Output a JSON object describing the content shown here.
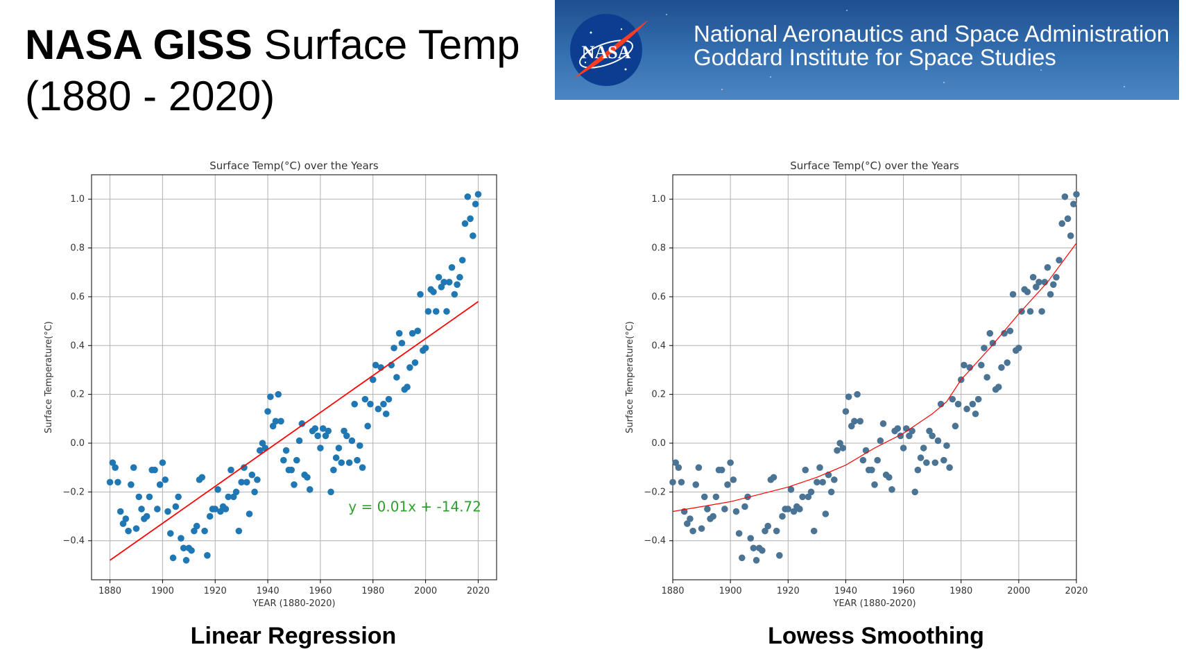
{
  "slide": {
    "title_bold": "NASA GISS",
    "title_rest": " Surface Temp",
    "title_line2": "(1880 - 2020)"
  },
  "banner": {
    "logo_text": "NASA",
    "line1": "National Aeronautics and Space Administration",
    "line2": "Goddard Institute for Space Studies"
  },
  "captions": {
    "left": "Linear Regression",
    "right": "Lowess Smoothing"
  },
  "colors": {
    "points_left": "#1f77b4",
    "points_right": "#4b7494",
    "fit_line": "#ff0000",
    "equation": "#2ca02c"
  },
  "chart_data": [
    {
      "type": "scatter",
      "title": "Surface Temp(°C) over the Years",
      "xlabel": "YEAR (1880-2020)",
      "ylabel": "Surface Temperature(°C)",
      "xlim": [
        1873,
        2027
      ],
      "ylim": [
        -0.56,
        1.1
      ],
      "xticks": [
        1880,
        1900,
        1920,
        1940,
        1960,
        1980,
        2000,
        2020
      ],
      "yticks": [
        -0.4,
        -0.2,
        0.0,
        0.2,
        0.4,
        0.6,
        0.8,
        1.0
      ],
      "grid": true,
      "fit": {
        "type": "linear",
        "x": [
          1880,
          2020
        ],
        "y": [
          -0.48,
          0.58
        ]
      },
      "annotation": "y = 0.01x + -14.72",
      "x": [
        1880,
        1881,
        1882,
        1883,
        1884,
        1885,
        1886,
        1887,
        1888,
        1889,
        1890,
        1891,
        1892,
        1893,
        1894,
        1895,
        1896,
        1897,
        1898,
        1899,
        1900,
        1901,
        1902,
        1903,
        1904,
        1905,
        1906,
        1907,
        1908,
        1909,
        1910,
        1911,
        1912,
        1913,
        1914,
        1915,
        1916,
        1917,
        1918,
        1919,
        1920,
        1921,
        1922,
        1923,
        1924,
        1925,
        1926,
        1927,
        1928,
        1929,
        1930,
        1931,
        1932,
        1933,
        1934,
        1935,
        1936,
        1937,
        1938,
        1939,
        1940,
        1941,
        1942,
        1943,
        1944,
        1945,
        1946,
        1947,
        1948,
        1949,
        1950,
        1951,
        1952,
        1953,
        1954,
        1955,
        1956,
        1957,
        1958,
        1959,
        1960,
        1961,
        1962,
        1963,
        1964,
        1965,
        1966,
        1967,
        1968,
        1969,
        1970,
        1971,
        1972,
        1973,
        1974,
        1975,
        1976,
        1977,
        1978,
        1979,
        1980,
        1981,
        1982,
        1983,
        1984,
        1985,
        1986,
        1987,
        1988,
        1989,
        1990,
        1991,
        1992,
        1993,
        1994,
        1995,
        1996,
        1997,
        1998,
        1999,
        2000,
        2001,
        2002,
        2003,
        2004,
        2005,
        2006,
        2007,
        2008,
        2009,
        2010,
        2011,
        2012,
        2013,
        2014,
        2015,
        2016,
        2017,
        2018,
        2019,
        2020
      ],
      "y": [
        -0.16,
        -0.08,
        -0.1,
        -0.16,
        -0.28,
        -0.33,
        -0.31,
        -0.36,
        -0.17,
        -0.1,
        -0.35,
        -0.22,
        -0.27,
        -0.31,
        -0.3,
        -0.22,
        -0.11,
        -0.11,
        -0.27,
        -0.17,
        -0.08,
        -0.15,
        -0.28,
        -0.37,
        -0.47,
        -0.26,
        -0.22,
        -0.39,
        -0.43,
        -0.48,
        -0.43,
        -0.44,
        -0.36,
        -0.34,
        -0.15,
        -0.14,
        -0.36,
        -0.46,
        -0.3,
        -0.27,
        -0.27,
        -0.19,
        -0.28,
        -0.26,
        -0.27,
        -0.22,
        -0.11,
        -0.22,
        -0.2,
        -0.36,
        -0.16,
        -0.1,
        -0.16,
        -0.29,
        -0.13,
        -0.2,
        -0.15,
        -0.03,
        0.0,
        -0.02,
        0.13,
        0.19,
        0.07,
        0.09,
        0.2,
        0.09,
        -0.07,
        -0.03,
        -0.11,
        -0.11,
        -0.17,
        -0.07,
        0.01,
        0.08,
        -0.13,
        -0.14,
        -0.19,
        0.05,
        0.06,
        0.03,
        -0.02,
        0.06,
        0.03,
        0.05,
        -0.2,
        -0.11,
        -0.06,
        -0.02,
        -0.08,
        0.05,
        0.03,
        -0.08,
        0.01,
        0.16,
        -0.07,
        -0.01,
        -0.1,
        0.18,
        0.07,
        0.16,
        0.26,
        0.32,
        0.14,
        0.31,
        0.16,
        0.12,
        0.18,
        0.32,
        0.39,
        0.27,
        0.45,
        0.41,
        0.22,
        0.23,
        0.31,
        0.45,
        0.33,
        0.46,
        0.61,
        0.38,
        0.39,
        0.54,
        0.63,
        0.62,
        0.54,
        0.68,
        0.64,
        0.66,
        0.54,
        0.66,
        0.72,
        0.61,
        0.65,
        0.68,
        0.75,
        0.9,
        1.01,
        0.92,
        0.85,
        0.98,
        1.02
      ]
    },
    {
      "type": "scatter",
      "title": "Surface Temp(°C) over the Years",
      "xlabel": "YEAR (1880-2020)",
      "ylabel": "Surface Temperature(°C)",
      "xlim": [
        1880,
        2020
      ],
      "ylim": [
        -0.56,
        1.1
      ],
      "xticks": [
        1880,
        1900,
        1920,
        1940,
        1960,
        1980,
        2000,
        2020
      ],
      "yticks": [
        -0.4,
        -0.2,
        0.0,
        0.2,
        0.4,
        0.6,
        0.8,
        1.0
      ],
      "grid": true,
      "fit": {
        "type": "lowess",
        "x": [
          1880,
          1890,
          1900,
          1910,
          1920,
          1930,
          1940,
          1950,
          1960,
          1970,
          1975,
          1980,
          1990,
          2000,
          2010,
          2020
        ],
        "y": [
          -0.28,
          -0.26,
          -0.24,
          -0.21,
          -0.18,
          -0.14,
          -0.09,
          -0.02,
          0.04,
          0.12,
          0.17,
          0.26,
          0.39,
          0.53,
          0.66,
          0.82
        ]
      }
    }
  ]
}
